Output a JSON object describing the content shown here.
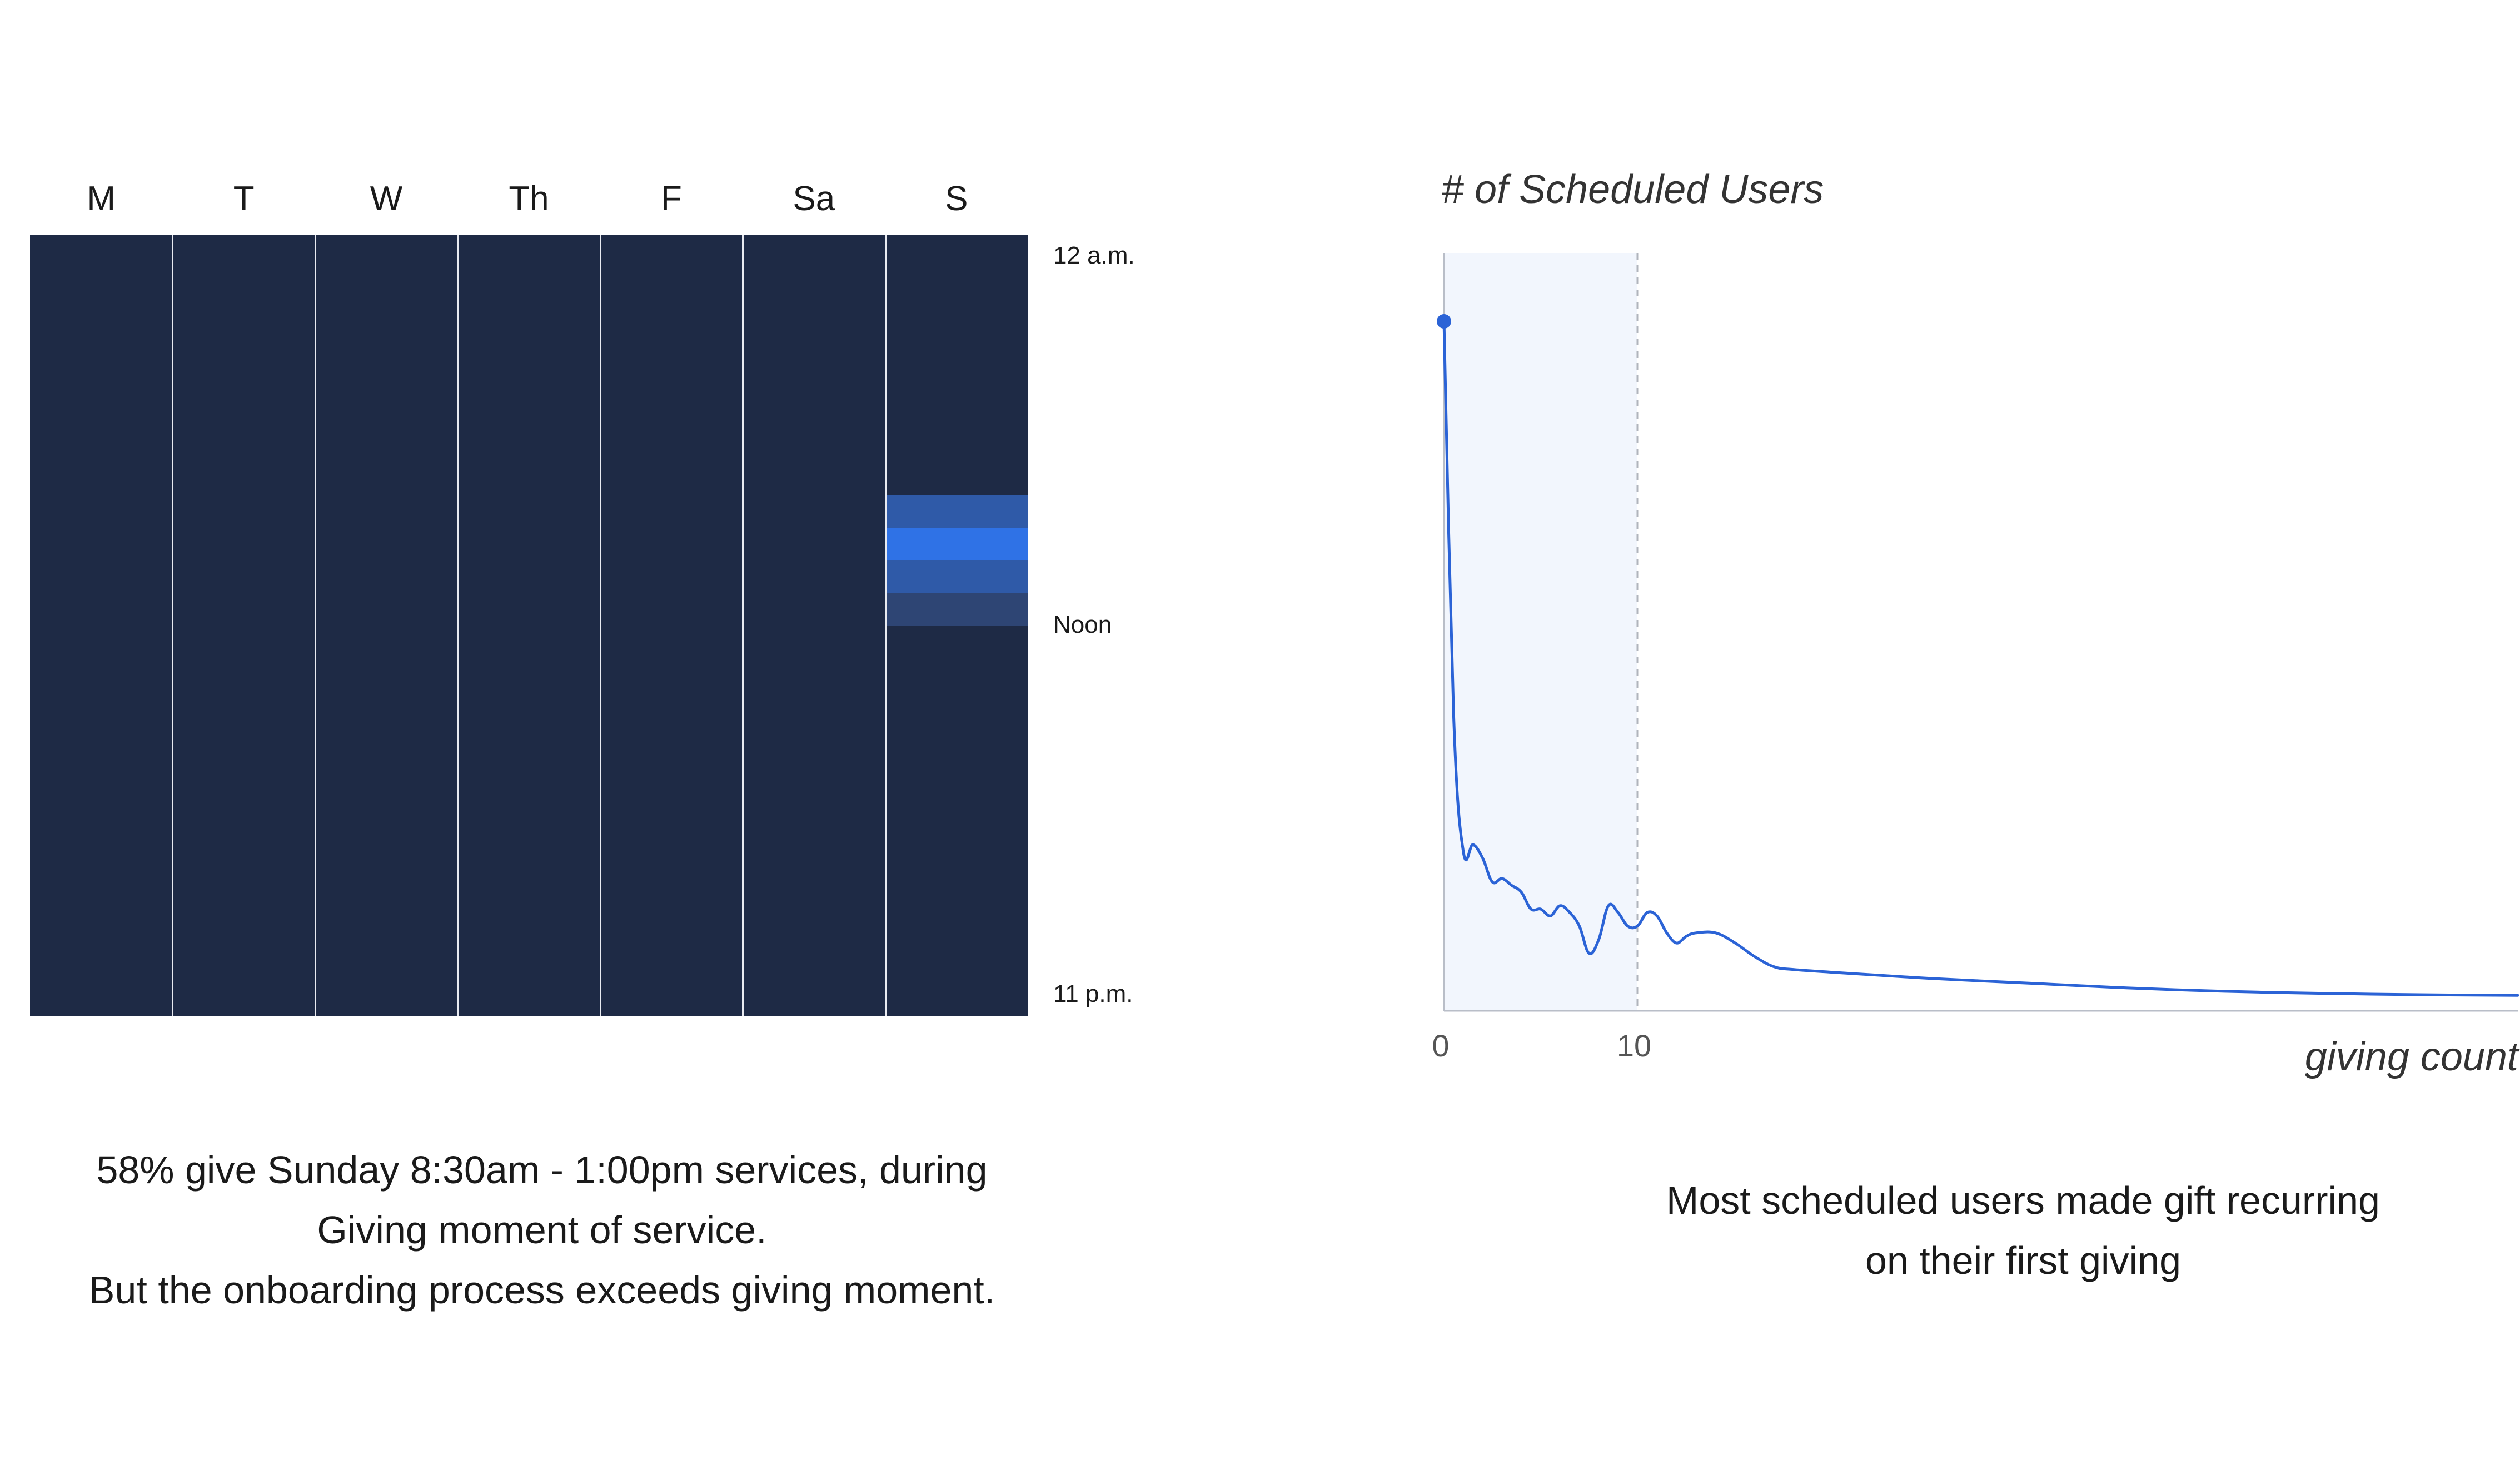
{
  "chart_data": [
    {
      "type": "heatmap",
      "days": [
        "M",
        "T",
        "W",
        "Th",
        "F",
        "Sa",
        "S"
      ],
      "hour_labels": [
        "12 a.m.",
        "Noon",
        "11 p.m."
      ],
      "hours": [
        0,
        23
      ],
      "cells": [
        {
          "day": "S",
          "start_hour": 8,
          "end_hour": 9,
          "intensity": 0.55
        },
        {
          "day": "S",
          "start_hour": 9,
          "end_hour": 10,
          "intensity": 1.0
        },
        {
          "day": "S",
          "start_hour": 10,
          "end_hour": 11,
          "intensity": 0.55
        },
        {
          "day": "S",
          "start_hour": 11,
          "end_hour": 12,
          "intensity": 0.3
        }
      ],
      "colors": {
        "base": "#1e2a45",
        "low": "#2e4574",
        "mid": "#2f5aa8",
        "high": "#2f72e6",
        "divider": "#e8eaf0"
      }
    },
    {
      "type": "line",
      "title": "# of Scheduled Users",
      "xlabel": "giving count",
      "ylabel": "",
      "x_ticks": [
        0,
        10
      ],
      "xlim": [
        0,
        55
      ],
      "highlight_range": [
        0,
        10
      ],
      "x": [
        0,
        0.5,
        1,
        1.5,
        2,
        2.5,
        3,
        3.5,
        4,
        4.5,
        5,
        5.5,
        6,
        6.5,
        7,
        7.5,
        8,
        8.5,
        9,
        9.5,
        10,
        10.5,
        11,
        11.5,
        12,
        12.5,
        13,
        14,
        15,
        16,
        17,
        18,
        20,
        25,
        30,
        35,
        40,
        45,
        50,
        55
      ],
      "values": [
        100,
        42,
        22,
        23,
        21,
        17.5,
        18,
        17,
        16,
        13.5,
        13.5,
        12.5,
        14,
        13,
        11,
        7,
        9,
        14,
        13,
        11,
        11,
        13,
        12.5,
        10,
        8.5,
        9.5,
        10,
        10,
        8.5,
        6.5,
        5,
        4.6,
        4.2,
        3.3,
        2.6,
        1.9,
        1.4,
        1.1,
        0.9,
        0.8
      ],
      "ylim": [
        0,
        100
      ],
      "colors": {
        "line": "#2b63d6",
        "highlight": "#f2f6fd",
        "axis": "#b9bec8",
        "guide": "#b0b4bc"
      }
    }
  ],
  "captions": {
    "left": [
      "58% give Sunday 8:30am - 1:00pm services, during",
      "Giving moment of service.",
      "But the onboarding process exceeds giving moment."
    ],
    "right": [
      "Most scheduled users made gift recurring",
      "on their first giving"
    ]
  }
}
